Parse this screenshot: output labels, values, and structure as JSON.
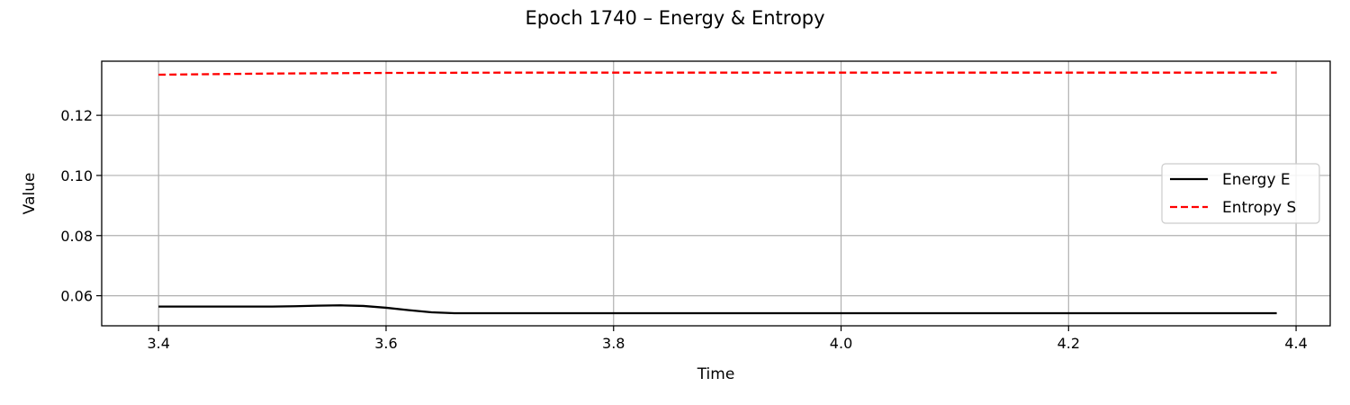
{
  "chart_data": {
    "type": "line",
    "title": "Epoch 1740 – Energy & Entropy",
    "xlabel": "Time",
    "ylabel": "Value",
    "xlim": [
      3.35,
      4.43
    ],
    "ylim": [
      0.05,
      0.138
    ],
    "xticks": [
      "3.4",
      "3.6",
      "3.8",
      "4.0",
      "4.2",
      "4.4"
    ],
    "yticks": [
      "0.06",
      "0.08",
      "0.10",
      "0.12"
    ],
    "grid": true,
    "legend_position": "center-right",
    "series": [
      {
        "name": "Energy E",
        "color": "#000000",
        "style": "solid",
        "x": [
          3.4,
          3.45,
          3.5,
          3.52,
          3.54,
          3.56,
          3.58,
          3.6,
          3.62,
          3.64,
          3.66,
          3.7,
          3.8,
          3.9,
          4.0,
          4.1,
          4.2,
          4.3,
          4.383
        ],
        "y": [
          0.0564,
          0.0564,
          0.0564,
          0.0565,
          0.0567,
          0.0568,
          0.0566,
          0.056,
          0.0552,
          0.0545,
          0.0542,
          0.0542,
          0.0542,
          0.0542,
          0.0542,
          0.0542,
          0.0542,
          0.0542,
          0.0542
        ]
      },
      {
        "name": "Entropy S",
        "color": "#ff0000",
        "style": "dashed",
        "x": [
          3.4,
          3.5,
          3.6,
          3.7,
          3.8,
          3.9,
          4.0,
          4.1,
          4.2,
          4.3,
          4.383
        ],
        "y": [
          0.1335,
          0.1339,
          0.1341,
          0.1342,
          0.1342,
          0.1342,
          0.1342,
          0.1342,
          0.1342,
          0.1342,
          0.1342
        ]
      }
    ]
  }
}
